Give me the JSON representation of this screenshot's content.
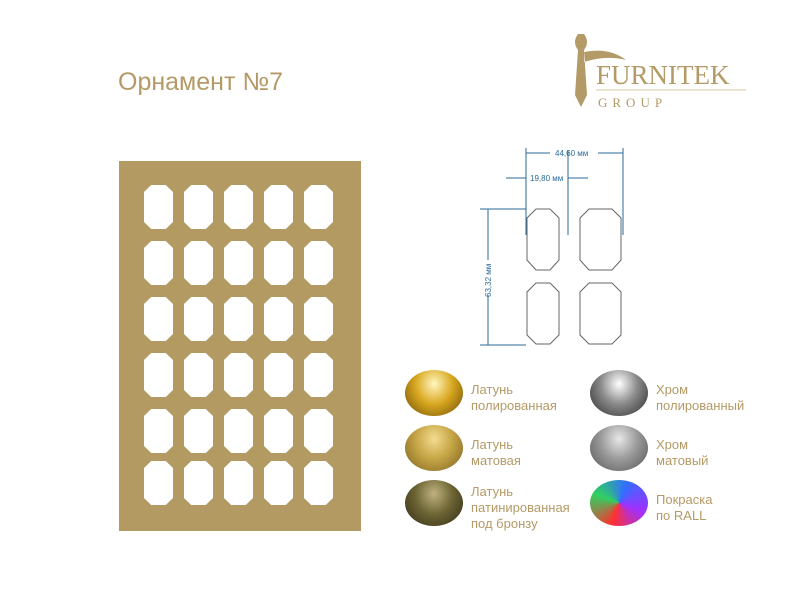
{
  "title": "Орнамент №7",
  "logo": {
    "name": "FURNITEK",
    "sub": "GROUP"
  },
  "dimensions": {
    "total_width": "44,60 мм",
    "cell_width": "19,80 мм",
    "height": "63,32 мм"
  },
  "finishes": [
    {
      "label": "Латунь\nполированная",
      "colors": [
        "#fff6c0",
        "#d9a820",
        "#6b4a05"
      ]
    },
    {
      "label": "Хром\nполированный",
      "colors": [
        "#ffffff",
        "#8a8a8a",
        "#2b2b2b"
      ]
    },
    {
      "label": "Латунь\nматовая",
      "colors": [
        "#f4dc90",
        "#c5a545",
        "#7a6020"
      ]
    },
    {
      "label": "Хром\nматовый",
      "colors": [
        "#e8e8e8",
        "#9a9a9a",
        "#555555"
      ]
    },
    {
      "label": "Латунь\nпатинированная\nпод бронзу",
      "colors": [
        "#c0b280",
        "#6e6535",
        "#2e2a12"
      ]
    },
    {
      "label": "Покраска\nпо RALL",
      "colors": [
        "#ff3030",
        "#30d060",
        "#3070ff"
      ]
    }
  ],
  "colors": {
    "accent": "#b49a66",
    "panel": "#b39a62",
    "dimension": "#2a6a9a"
  }
}
